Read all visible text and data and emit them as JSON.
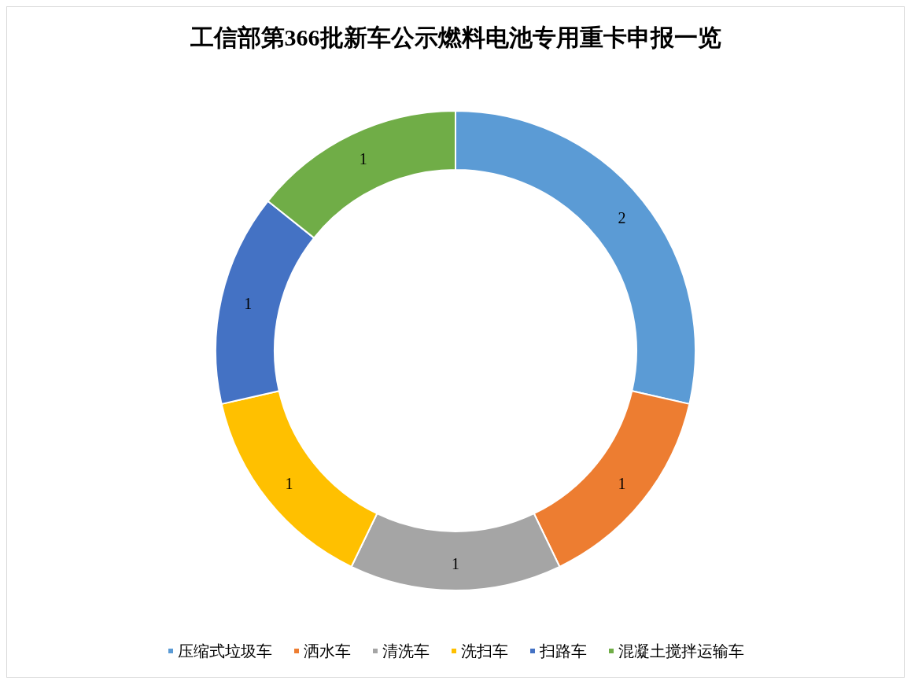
{
  "chart_data": {
    "type": "donut",
    "title": "工信部第366批新车公示燃料电池专用重卡申报一览",
    "categories": [
      "压缩式垃圾车",
      "洒水车",
      "清洗车",
      "洗扫车",
      "扫路车",
      "混凝土搅拌运输车"
    ],
    "values": [
      2,
      1,
      1,
      1,
      1,
      1
    ],
    "colors": [
      "#5b9bd5",
      "#ed7d31",
      "#a5a5a5",
      "#ffc000",
      "#4472c4",
      "#70ad47"
    ],
    "data_labels": true,
    "legend": "bottom"
  }
}
